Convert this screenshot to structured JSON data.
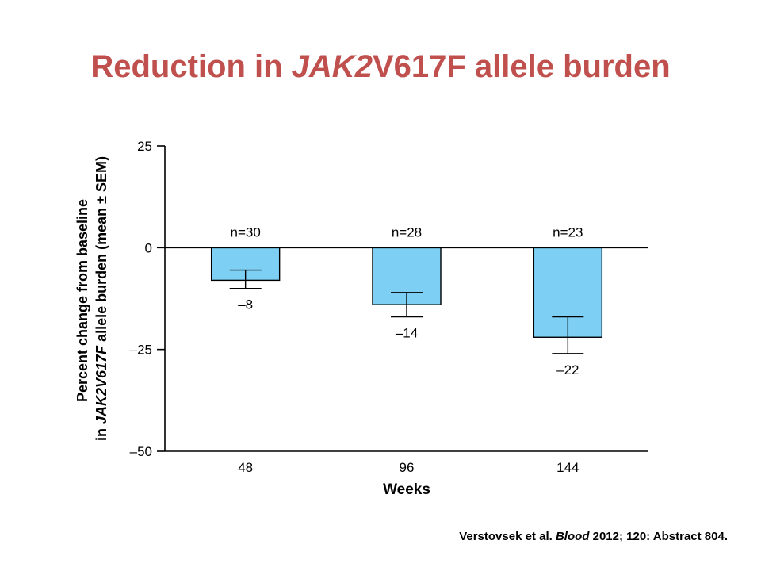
{
  "slide": {
    "title_prefix": "Reduction in ",
    "title_italic": "JAK2",
    "title_suffix": "V617F allele burden",
    "citation_prefix": "Verstovsek et al. ",
    "citation_italic": "Blood",
    "citation_suffix": " 2012; 120: Abstract 804."
  },
  "chart_data": {
    "type": "bar",
    "categories": [
      "48",
      "96",
      "144"
    ],
    "values": [
      -8,
      -14,
      -22
    ],
    "value_labels": [
      "–8",
      "–14",
      "–22"
    ],
    "error_bars": [
      {
        "low": -10,
        "high": -5.5
      },
      {
        "low": -17,
        "high": -11
      },
      {
        "low": -26,
        "high": -17
      }
    ],
    "n_labels": [
      "n=30",
      "n=28",
      "n=23"
    ],
    "xlabel": "Weeks",
    "ylabel_line1": "Percent change from baseline",
    "ylabel_line2_prefix": "in ",
    "ylabel_line2_italic": "JAK2V617F",
    "ylabel_line2_suffix": " allele burden (mean ± SEM)",
    "ylim": [
      -50,
      25
    ],
    "yticks": [
      25,
      0,
      -25,
      -50
    ],
    "ytick_labels": [
      "25",
      "0",
      "–25",
      "–50"
    ],
    "bar_color": "#7ecff4",
    "grid": false
  }
}
